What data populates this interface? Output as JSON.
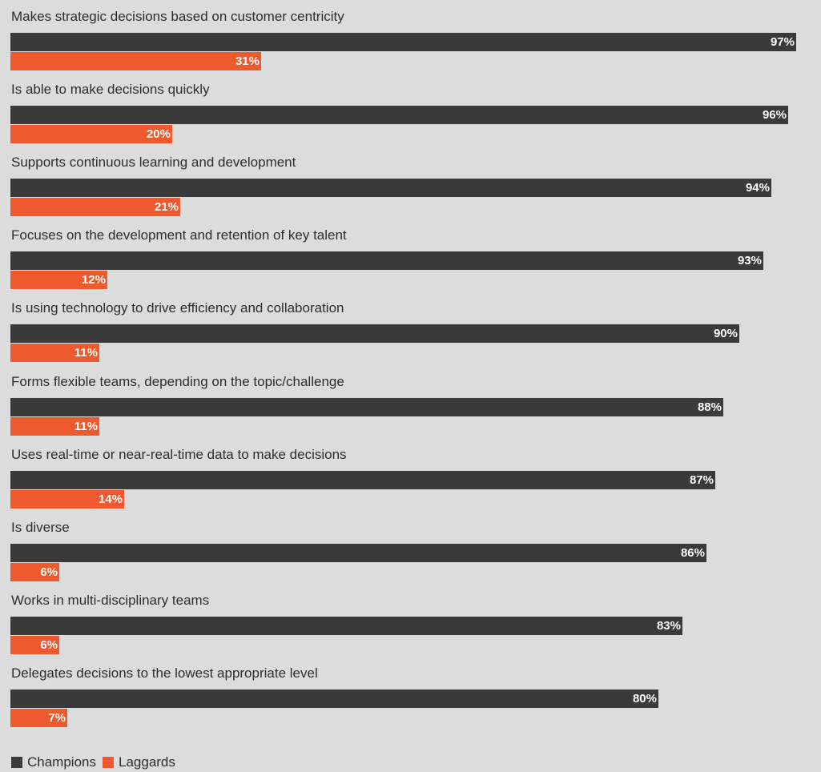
{
  "chart_data": {
    "type": "bar",
    "orientation": "horizontal",
    "categories": [
      "Makes strategic decisions based on customer centricity",
      "Is able to make decisions quickly",
      "Supports continuous learning and development",
      "Focuses on the development and retention of key talent",
      "Is using technology to drive efficiency and collaboration",
      "Forms flexible teams, depending on the topic/challenge",
      "Uses real-time or near-real-time data to make decisions",
      "Is diverse",
      "Works in multi-disciplinary teams",
      "Delegates decisions to the lowest appropriate level"
    ],
    "series": [
      {
        "name": "Champions",
        "color": "#3a3a3a",
        "values": [
          97,
          96,
          94,
          93,
          90,
          88,
          87,
          86,
          83,
          80
        ],
        "labels": [
          "97%",
          "96%",
          "94%",
          "93%",
          "90%",
          "88%",
          "87%",
          "86%",
          "83%",
          "80%"
        ]
      },
      {
        "name": "Laggards",
        "color": "#ee5a2e",
        "values": [
          31,
          20,
          21,
          12,
          11,
          11,
          14,
          6,
          6,
          7
        ],
        "labels": [
          "31%",
          "20%",
          "21%",
          "12%",
          "11%",
          "11%",
          "14%",
          "6%",
          "6%",
          "7%"
        ]
      }
    ],
    "xlim": [
      0,
      100
    ],
    "grid": false,
    "legend": "bottom-left"
  }
}
